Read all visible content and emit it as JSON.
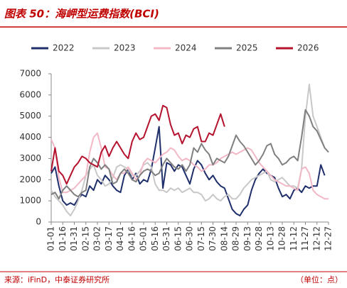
{
  "chart_data": {
    "type": "line",
    "title": "图表 50：海岬型运费指数(BCI)",
    "source": "来源：iFinD，中泰证券研究所",
    "unit_note": "（单位：点）",
    "categories": [
      "01-01",
      null,
      null,
      "01-16",
      null,
      null,
      "01-31",
      null,
      null,
      "02-15",
      null,
      null,
      "03-02",
      null,
      null,
      "03-17",
      null,
      null,
      "04-01",
      null,
      null,
      "04-16",
      null,
      null,
      "05-01",
      null,
      null,
      "05-16",
      null,
      null,
      "05-31",
      null,
      null,
      "06-15",
      null,
      null,
      "06-30",
      null,
      null,
      "07-15",
      null,
      null,
      "07-30",
      null,
      null,
      "08-14",
      null,
      null,
      "08-29",
      null,
      null,
      "09-13",
      null,
      null,
      "09-28",
      null,
      null,
      "10-13",
      null,
      null,
      "10-28",
      null,
      null,
      "11-12",
      null,
      null,
      "11-27",
      null,
      null,
      "12-12",
      null,
      null,
      "12-27"
    ],
    "series": [
      {
        "name": "2022",
        "color": "#1f2f6b",
        "values": [
          2300,
          2600,
          1700,
          1000,
          800,
          900,
          800,
          1100,
          1300,
          1200,
          1700,
          1500,
          2000,
          1800,
          2200,
          2000,
          1700,
          1500,
          1400,
          2200,
          2500,
          2000,
          2300,
          1800,
          2000,
          1900,
          2500,
          3500,
          4500,
          1600,
          2800,
          2700,
          2400,
          2700,
          2600,
          2200,
          1800,
          2500,
          2900,
          2700,
          2300,
          2000,
          2200,
          1900,
          1700,
          1600,
          1100,
          600,
          400,
          300,
          600,
          800,
          1500,
          2000,
          2300,
          2500,
          2300,
          2200,
          2100,
          1600,
          1200,
          1300,
          1100,
          1500,
          1600,
          1400,
          1700,
          1600,
          1700,
          1700,
          2700,
          2200,
          null
        ]
      },
      {
        "name": "2023",
        "color": "#c8c8c8",
        "values": [
          1500,
          1200,
          1000,
          800,
          500,
          300,
          600,
          1000,
          1500,
          2200,
          2500,
          2700,
          2200,
          2000,
          1700,
          1800,
          2100,
          2600,
          2700,
          2600,
          2500,
          2200,
          2200,
          2400,
          2700,
          2800,
          2600,
          1800,
          1500,
          1500,
          1400,
          1600,
          1500,
          1600,
          1400,
          1500,
          1600,
          1400,
          1400,
          1300,
          1000,
          1100,
          1300,
          1100,
          1000,
          1200,
          1300,
          1100,
          1100,
          1300,
          1600,
          1800,
          2000,
          2100,
          2200,
          2300,
          2400,
          2000,
          1900,
          2000,
          2100,
          1900,
          1700,
          1700,
          1600,
          2500,
          5000,
          6500,
          5000,
          4500,
          4000,
          3500,
          3300
        ]
      },
      {
        "name": "2024",
        "color": "#f2b8c6",
        "values": [
          3900,
          3500,
          2100,
          1400,
          1400,
          1500,
          1600,
          1800,
          2000,
          2200,
          3300,
          4000,
          4200,
          3500,
          2600,
          2500,
          2200,
          2000,
          2300,
          2300,
          2600,
          2300,
          2000,
          2200,
          2800,
          3000,
          2900,
          2800,
          3000,
          3200,
          3300,
          3500,
          3400,
          3100,
          2900,
          3000,
          2900,
          2700,
          2600,
          2400,
          2500,
          2700,
          2700,
          2800,
          3000,
          3100,
          3200,
          3300,
          3200,
          3300,
          3400,
          3500,
          3400,
          3100,
          2800,
          2600,
          2400,
          2200,
          2000,
          1900,
          1800,
          1700,
          1700,
          1600,
          1500,
          2500,
          2600,
          2300,
          1500,
          1300,
          1200,
          1100,
          1100
        ]
      },
      {
        "name": "2025",
        "color": "#808080",
        "values": [
          1300,
          1400,
          1100,
          1500,
          1700,
          1500,
          1300,
          1200,
          1400,
          1500,
          2600,
          3000,
          2800,
          2500,
          2700,
          2500,
          1800,
          1900,
          2300,
          2500,
          2300,
          2000,
          1900,
          2200,
          2400,
          2500,
          2400,
          2200,
          2300,
          2700,
          3000,
          2800,
          2600,
          2500,
          2700,
          2400,
          2700,
          3500,
          3300,
          3700,
          3400,
          3200,
          2700,
          3000,
          2900,
          2800,
          3100,
          3600,
          4100,
          3800,
          3600,
          3300,
          3000,
          2700,
          2900,
          3200,
          3600,
          3700,
          3200,
          3000,
          2700,
          2800,
          3000,
          3100,
          2900,
          4000,
          5300,
          5000,
          4500,
          4300,
          3900,
          3500,
          3300
        ]
      },
      {
        "name": "2026",
        "color": "#b5122e",
        "values": [
          2400,
          3500,
          2400,
          2200,
          1800,
          2200,
          2600,
          2800,
          3100,
          3000,
          2800,
          2700,
          2600,
          3300,
          3600,
          3100,
          3500,
          3800,
          3500,
          3200,
          3000,
          3800,
          4200,
          3900,
          4000,
          4500,
          5000,
          5100,
          4800,
          5500,
          5400,
          4600,
          4100,
          4200,
          3700,
          4100,
          4000,
          4400,
          4500,
          3800,
          3800,
          4200,
          4100,
          4600,
          5100,
          4500,
          null,
          null,
          null,
          null,
          null,
          null,
          null,
          null,
          null,
          null,
          null,
          null,
          null,
          null,
          null,
          null,
          null,
          null,
          null,
          null,
          null,
          null,
          null,
          null,
          null,
          null,
          null
        ]
      }
    ],
    "ylim": [
      0,
      7000
    ],
    "yticks": [
      0,
      1000,
      2000,
      3000,
      4000,
      5000,
      6000,
      7000
    ],
    "grid": false
  }
}
